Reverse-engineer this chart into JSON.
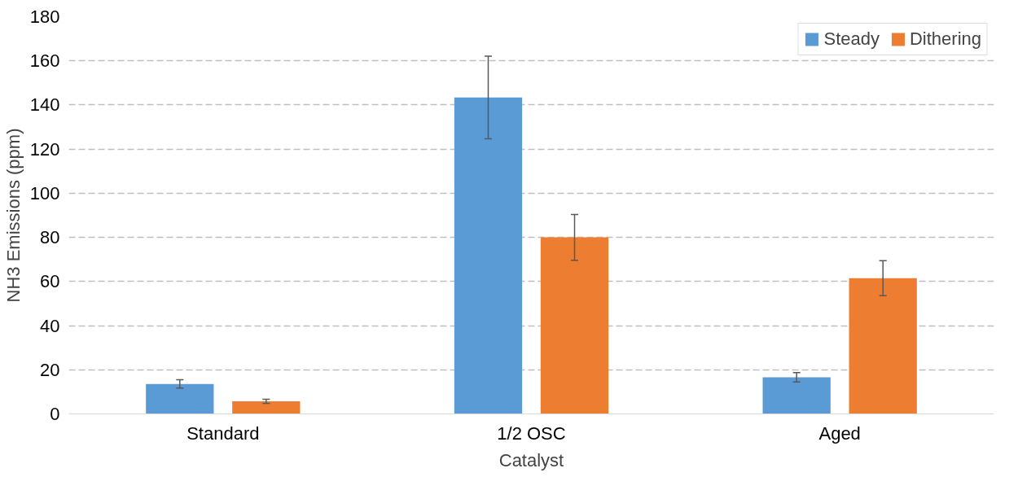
{
  "chart_data": {
    "type": "bar",
    "xlabel": "Catalyst",
    "ylabel": "NH3 Emissions (ppm)",
    "categories": [
      "Standard",
      "1/2 OSC",
      "Aged"
    ],
    "series": [
      {
        "name": "Steady",
        "color": "#5b9bd5",
        "values": [
          13.6,
          143.4,
          16.6
        ],
        "errors": [
          1.9,
          18.7,
          2.1
        ]
      },
      {
        "name": "Dithering",
        "color": "#ed7d31",
        "values": [
          5.7,
          80,
          61.5
        ],
        "errors": [
          0.9,
          10.4,
          7.9
        ]
      }
    ],
    "ylim": [
      0,
      180
    ],
    "yticks": [
      0,
      20,
      40,
      60,
      80,
      100,
      120,
      140,
      160,
      180
    ],
    "grid": "y",
    "legend": "top right"
  }
}
